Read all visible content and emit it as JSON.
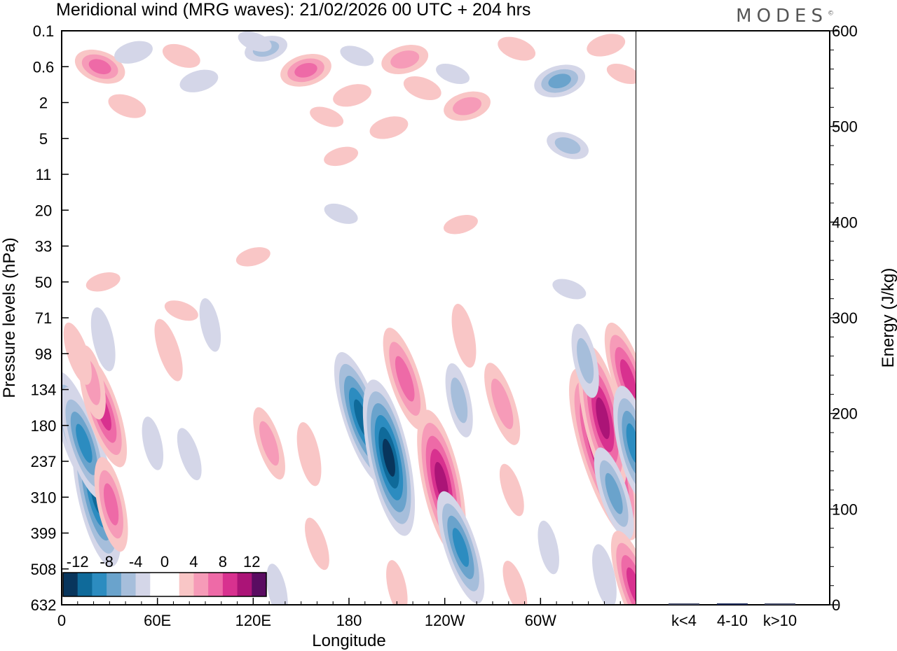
{
  "header": {
    "title": "Meridional wind (MRG waves):  21/02/2026  00 UTC  + 204 hrs",
    "logo": "MODES"
  },
  "chart_data": [
    {
      "type": "heatmap",
      "title": "Meridional wind (MRG waves):  21/02/2026  00 UTC  + 204 hrs",
      "xlabel": "Longitude",
      "ylabel": "Pressure levels (hPa)",
      "x_ticks": [
        "0",
        "60E",
        "120E",
        "180",
        "120W",
        "60W"
      ],
      "x_range": [
        0,
        360
      ],
      "y_ticks": [
        "0.1",
        "0.6",
        "2",
        "5",
        "11",
        "20",
        "33",
        "50",
        "71",
        "98",
        "134",
        "180",
        "237",
        "310",
        "399",
        "508",
        "632"
      ],
      "colorbar": {
        "labels": [
          "-12",
          "-8",
          "-4",
          "0",
          "4",
          "8",
          "12"
        ],
        "colors": [
          "#08355c",
          "#0f6a9a",
          "#2c8cc0",
          "#6aa3cc",
          "#a6bedb",
          "#d4d6e8",
          "#ffffff",
          "#ffffff",
          "#f9c6c6",
          "#f69bb8",
          "#ee6aa7",
          "#d8318f",
          "#ab1477",
          "#5a0c61"
        ]
      },
      "anomalies": [
        {
          "lon": 10,
          "lev": 11.2,
          "value": -9
        },
        {
          "lon": 22,
          "lev": 12.9,
          "value": -11
        },
        {
          "lon": 14,
          "lev": 11.5,
          "value": -8
        },
        {
          "lon": 31,
          "lev": 13.2,
          "value": 6
        },
        {
          "lon": 26,
          "lev": 10.6,
          "value": 8
        },
        {
          "lon": 19,
          "lev": 9.8,
          "value": 4
        },
        {
          "lon": 10,
          "lev": 9.0,
          "value": 3
        },
        {
          "lon": 24,
          "lev": 1.0,
          "value": 6
        },
        {
          "lon": 45,
          "lev": 0.6,
          "value": -3
        },
        {
          "lon": 75,
          "lev": 0.7,
          "value": 3
        },
        {
          "lon": 86,
          "lev": 1.4,
          "value": -3
        },
        {
          "lon": 41,
          "lev": 2.1,
          "value": 3
        },
        {
          "lon": 128,
          "lev": 0.5,
          "value": -4
        },
        {
          "lon": 121,
          "lev": 0.3,
          "value": -2
        },
        {
          "lon": 153,
          "lev": 1.1,
          "value": 6
        },
        {
          "lon": 166,
          "lev": 2.4,
          "value": 2
        },
        {
          "lon": 182,
          "lev": 1.8,
          "value": 3
        },
        {
          "lon": 185,
          "lev": 0.7,
          "value": -2
        },
        {
          "lon": 215,
          "lev": 0.8,
          "value": 5
        },
        {
          "lon": 226,
          "lev": 1.6,
          "value": 3
        },
        {
          "lon": 205,
          "lev": 2.7,
          "value": 3
        },
        {
          "lon": 245,
          "lev": 1.2,
          "value": -2
        },
        {
          "lon": 254,
          "lev": 2.1,
          "value": 5
        },
        {
          "lon": 285,
          "lev": 0.5,
          "value": 3
        },
        {
          "lon": 312,
          "lev": 1.4,
          "value": -6
        },
        {
          "lon": 317,
          "lev": 3.2,
          "value": -4
        },
        {
          "lon": 341,
          "lev": 0.4,
          "value": 3
        },
        {
          "lon": 352,
          "lev": 1.2,
          "value": 2
        },
        {
          "lon": 26,
          "lev": 7.0,
          "value": 2
        },
        {
          "lon": 75,
          "lev": 7.8,
          "value": 2
        },
        {
          "lon": 120,
          "lev": 6.3,
          "value": 2
        },
        {
          "lon": 175,
          "lev": 5.1,
          "value": -2
        },
        {
          "lon": 250,
          "lev": 5.4,
          "value": 2
        },
        {
          "lon": 318,
          "lev": 7.2,
          "value": -2
        },
        {
          "lon": 175,
          "lev": 3.5,
          "value": 2
        },
        {
          "lon": 26,
          "lev": 8.6,
          "value": -3
        },
        {
          "lon": 67,
          "lev": 8.9,
          "value": 3
        },
        {
          "lon": 93,
          "lev": 8.2,
          "value": -2
        },
        {
          "lon": 188,
          "lev": 10.8,
          "value": -10
        },
        {
          "lon": 205,
          "lev": 11.9,
          "value": -12
        },
        {
          "lon": 215,
          "lev": 9.7,
          "value": 7
        },
        {
          "lon": 238,
          "lev": 12.6,
          "value": 11
        },
        {
          "lon": 250,
          "lev": 14.4,
          "value": -8
        },
        {
          "lon": 249,
          "lev": 10.3,
          "value": -4
        },
        {
          "lon": 276,
          "lev": 10.4,
          "value": 5
        },
        {
          "lon": 252,
          "lev": 8.5,
          "value": 3
        },
        {
          "lon": 340,
          "lev": 11.8,
          "value": 14
        },
        {
          "lon": 339,
          "lev": 10.8,
          "value": 11
        },
        {
          "lon": 346,
          "lev": 12.9,
          "value": -6
        },
        {
          "lon": 328,
          "lev": 9.2,
          "value": -4
        },
        {
          "lon": 355,
          "lev": 9.7,
          "value": 8
        },
        {
          "lon": 358,
          "lev": 11.5,
          "value": -8
        },
        {
          "lon": 359,
          "lev": 15.5,
          "value": 8
        },
        {
          "lon": 340,
          "lev": 15.2,
          "value": -3
        },
        {
          "lon": 130,
          "lev": 11.5,
          "value": 4
        },
        {
          "lon": 155,
          "lev": 11.8,
          "value": 3
        },
        {
          "lon": 160,
          "lev": 14.3,
          "value": 2
        },
        {
          "lon": 57,
          "lev": 11.5,
          "value": -2
        },
        {
          "lon": 80,
          "lev": 11.8,
          "value": -2
        },
        {
          "lon": 210,
          "lev": 15.5,
          "value": 2
        },
        {
          "lon": 282,
          "lev": 12.8,
          "value": 2
        },
        {
          "lon": 305,
          "lev": 14.4,
          "value": -2
        },
        {
          "lon": 284,
          "lev": 15.5,
          "value": 2
        },
        {
          "lon": 135,
          "lev": 15.6,
          "value": -2
        }
      ]
    },
    {
      "type": "bar",
      "categories": [
        "k<4",
        "4-10",
        "k>10"
      ],
      "values": [
        0.2,
        1.5,
        0.4
      ],
      "xlabel": "",
      "ylabel": "Energy (J/kg)",
      "ylim": [
        0,
        600
      ],
      "y_ticks": [
        "0",
        "100",
        "200",
        "300",
        "400",
        "500",
        "600"
      ]
    }
  ]
}
